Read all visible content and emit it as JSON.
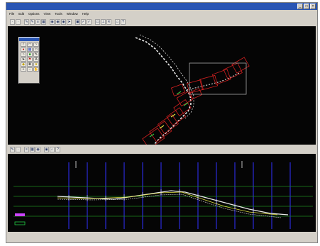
{
  "window": {
    "title": "",
    "controls": [
      "_",
      "□",
      "×"
    ]
  },
  "menu": {
    "items": [
      "File",
      "Edit",
      "Options",
      "View",
      "Tools",
      "Window",
      "Help"
    ]
  },
  "toolbar_main": {
    "buttons": [
      "dot",
      "dot",
      "pen",
      "pen",
      "list",
      "grid",
      "eye",
      "eye",
      "eye",
      "arrow",
      "lock",
      "ok",
      "ok",
      "select",
      "measure",
      "cross",
      "home",
      "help"
    ]
  },
  "palette": {
    "buttons": [
      "line",
      "arc",
      "curve",
      "node",
      "grid",
      "rect",
      "circle",
      "fill",
      "pen",
      "select",
      "flag",
      "text",
      "color",
      "move",
      "star",
      "zoom",
      "zoom",
      "pan"
    ]
  },
  "toolbar_profile": {
    "buttons": [
      "pen",
      "dot",
      "list",
      "grid",
      "eye",
      "eye",
      "home",
      "help"
    ]
  },
  "profile": {
    "legend": [
      {
        "text": "",
        "color": "#22cc44"
      },
      {
        "text": "",
        "color": "#38a8ff"
      },
      {
        "text": "",
        "color": "#cc44ff"
      }
    ]
  },
  "status": {
    "row1": [
      "",
      "",
      ""
    ],
    "row2": [
      "",
      "",
      ""
    ]
  },
  "colors": {
    "accent": "#2a56b4",
    "alignment_red": "#d02020",
    "alignment_white": "#e8e8e8",
    "profile_blue": "#2a2ad8",
    "profile_green": "#1e8a1e"
  }
}
